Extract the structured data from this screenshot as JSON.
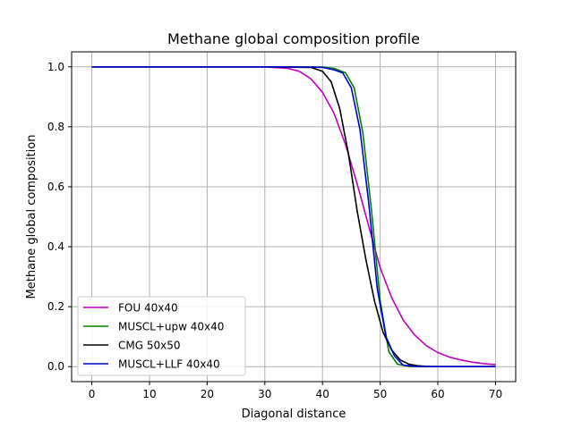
{
  "chart_data": {
    "type": "line",
    "title": "Methane global composition profile",
    "xlabel": "Diagonal distance",
    "ylabel": "Methane global composition",
    "xlim": [
      -3.5,
      73.5
    ],
    "ylim": [
      -0.05,
      1.05
    ],
    "xticks": [
      0,
      10,
      20,
      30,
      40,
      50,
      60,
      70
    ],
    "yticks": [
      0.0,
      0.2,
      0.4,
      0.6,
      0.8,
      1.0
    ],
    "xtick_labels": [
      "0",
      "10",
      "20",
      "30",
      "40",
      "50",
      "60",
      "70"
    ],
    "ytick_labels": [
      "0.0",
      "0.2",
      "0.4",
      "0.6",
      "0.8",
      "1.0"
    ],
    "grid": true,
    "legend_position": "lower-left",
    "series": [
      {
        "name": "FOU 40x40",
        "color": "#bf00bf",
        "x": [
          0,
          10,
          20,
          30,
          34,
          36,
          38,
          40,
          42,
          44,
          46,
          48,
          50,
          52,
          54,
          56,
          58,
          60,
          62,
          64,
          66,
          68,
          70
        ],
        "y": [
          1.0,
          1.0,
          1.0,
          1.0,
          0.995,
          0.985,
          0.96,
          0.915,
          0.845,
          0.74,
          0.61,
          0.47,
          0.33,
          0.23,
          0.155,
          0.105,
          0.07,
          0.047,
          0.032,
          0.022,
          0.015,
          0.01,
          0.007
        ]
      },
      {
        "name": "MUSCL+upw 40x40",
        "color": "#008000",
        "x": [
          0,
          10,
          20,
          30,
          40,
          42,
          44,
          45.5,
          47,
          48.5,
          50,
          51.5,
          53,
          55,
          58,
          62,
          66,
          70
        ],
        "y": [
          1.0,
          1.0,
          1.0,
          1.0,
          0.999,
          0.995,
          0.98,
          0.93,
          0.78,
          0.52,
          0.22,
          0.05,
          0.008,
          0.001,
          0.0,
          0.0,
          0.0,
          0.0
        ]
      },
      {
        "name": "CMG 50x50",
        "color": "#000000",
        "x": [
          0,
          10,
          20,
          30,
          38,
          40,
          41.5,
          43,
          44.5,
          46,
          47.5,
          49,
          50.5,
          52,
          53.5,
          55,
          56.5,
          58,
          60,
          65,
          70
        ],
        "y": [
          1.0,
          1.0,
          1.0,
          1.0,
          0.998,
          0.985,
          0.95,
          0.86,
          0.71,
          0.52,
          0.36,
          0.22,
          0.115,
          0.055,
          0.022,
          0.008,
          0.003,
          0.001,
          0.0,
          0.0,
          0.0
        ]
      },
      {
        "name": "MUSCL+LLF 40x40",
        "color": "#0000cc",
        "x": [
          0,
          10,
          20,
          30,
          38,
          40,
          42,
          43.5,
          45,
          46.5,
          48,
          49.5,
          51,
          52.5,
          54,
          56,
          58,
          60,
          65,
          70
        ],
        "y": [
          1.0,
          1.0,
          1.0,
          1.0,
          0.999,
          0.998,
          0.99,
          0.98,
          0.93,
          0.79,
          0.55,
          0.26,
          0.1,
          0.035,
          0.005,
          0.001,
          0.0,
          0.0,
          0.0,
          0.0
        ]
      }
    ]
  }
}
